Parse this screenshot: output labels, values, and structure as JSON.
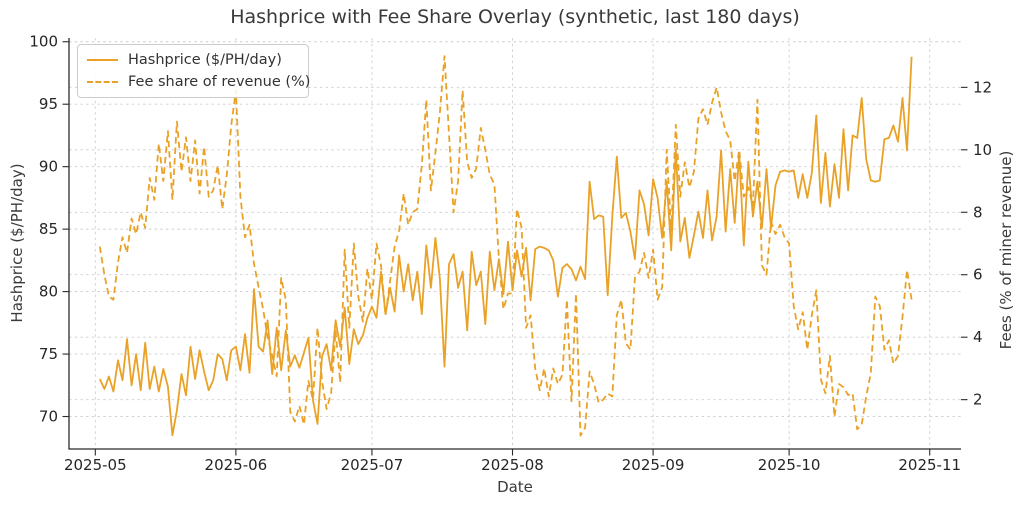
{
  "title": "Hashprice with Fee Share Overlay (synthetic, last 180 days)",
  "legend": {
    "items": [
      {
        "label": "Hashprice ($/PH/day)",
        "style": "solid"
      },
      {
        "label": "Fee share of revenue (%)",
        "style": "dashed"
      }
    ]
  },
  "colors": {
    "line": "#E9A227",
    "grid": "#cdcdcd",
    "spine": "#2b2b2b",
    "tick_text": "#262626",
    "text": "#3a3a3a"
  },
  "chart_data": {
    "type": "line",
    "title": "Hashprice with Fee Share Overlay (synthetic, last 180 days)",
    "xlabel": "Date",
    "ylabel_left": "Hashprice ($/PH/day)",
    "ylabel_right": "Fees (% of miner revenue)",
    "x_start_date": "2025-05-02",
    "x_cadence": "daily",
    "x_ticks": [
      {
        "label": "2025-05",
        "index": -1
      },
      {
        "label": "2025-06",
        "index": 30
      },
      {
        "label": "2025-07",
        "index": 60
      },
      {
        "label": "2025-08",
        "index": 91
      },
      {
        "label": "2025-09",
        "index": 122
      },
      {
        "label": "2025-10",
        "index": 152
      },
      {
        "label": "2025-11",
        "index": 183
      }
    ],
    "xlim_index": [
      -6.8,
      189.9
    ],
    "ylim_left": [
      67.4,
      100.3
    ],
    "yticks_left": [
      70,
      75,
      80,
      85,
      90,
      95,
      100
    ],
    "ylim_right": [
      0.42,
      13.58
    ],
    "yticks_right": [
      2,
      4,
      6,
      8,
      10,
      12
    ],
    "grid": true,
    "legend_position": "upper-left",
    "series": [
      {
        "name": "Hashprice ($/PH/day)",
        "axis": "left",
        "style": "solid",
        "values": [
          73.0,
          72.2,
          73.2,
          72.0,
          74.5,
          72.9,
          76.2,
          72.5,
          75.0,
          72.1,
          75.9,
          72.2,
          74.0,
          72.0,
          73.8,
          72.4,
          68.5,
          70.5,
          73.4,
          71.7,
          75.6,
          73.0,
          75.3,
          73.6,
          72.1,
          72.9,
          75.0,
          74.6,
          72.9,
          75.3,
          75.6,
          73.7,
          76.6,
          73.5,
          80.2,
          75.6,
          75.2,
          77.7,
          73.4,
          77.1,
          73.7,
          76.9,
          74.0,
          74.9,
          73.9,
          75.1,
          76.3,
          71.3,
          69.4,
          74.8,
          75.8,
          73.7,
          77.7,
          75.6,
          78.7,
          74.2,
          77.0,
          75.8,
          76.5,
          77.9,
          78.8,
          77.9,
          81.6,
          78.2,
          80.3,
          78.4,
          82.9,
          80.0,
          82.2,
          79.3,
          81.6,
          78.2,
          83.7,
          80.3,
          84.3,
          81.0,
          74.0,
          82.2,
          83.0,
          80.3,
          81.6,
          76.9,
          83.2,
          80.5,
          81.6,
          77.4,
          83.2,
          80.1,
          82.6,
          79.8,
          84.0,
          80.1,
          83.3,
          81.2,
          83.5,
          79.3,
          83.4,
          83.6,
          83.5,
          83.3,
          82.5,
          79.6,
          81.9,
          82.2,
          81.8,
          80.9,
          82.0,
          81.0,
          88.8,
          85.8,
          86.1,
          86.0,
          79.7,
          86.0,
          90.8,
          85.9,
          86.3,
          84.8,
          82.6,
          88.1,
          87.0,
          84.5,
          89.0,
          87.5,
          84.3,
          88.8,
          83.3,
          91.4,
          84.0,
          85.9,
          82.7,
          84.5,
          86.4,
          84.3,
          88.1,
          84.1,
          86.0,
          91.3,
          84.8,
          89.8,
          85.5,
          91.1,
          83.7,
          90.4,
          86.0,
          88.8,
          85.1,
          89.8,
          85.1,
          88.5,
          89.6,
          89.7,
          89.6,
          89.7,
          87.5,
          89.4,
          87.5,
          89.5,
          94.1,
          87.1,
          91.1,
          86.8,
          90.2,
          87.5,
          93.0,
          88.1,
          92.5,
          92.3,
          95.5,
          90.6,
          88.9,
          88.8,
          88.9,
          92.2,
          92.3,
          93.3,
          92.0,
          95.5,
          91.3,
          98.8
        ]
      },
      {
        "name": "Fee share of revenue (%)",
        "axis": "right",
        "style": "dashed",
        "values": [
          6.9,
          6.0,
          5.3,
          5.2,
          6.4,
          7.2,
          6.7,
          7.8,
          7.3,
          8.0,
          7.5,
          9.1,
          8.4,
          10.2,
          9.0,
          10.6,
          8.4,
          10.9,
          9.3,
          10.4,
          9.0,
          10.3,
          8.6,
          10.1,
          8.5,
          8.7,
          9.5,
          8.1,
          9.2,
          10.8,
          11.9,
          8.5,
          7.2,
          7.6,
          6.35,
          5.6,
          4.9,
          4.0,
          3.4,
          2.75,
          5.9,
          5.2,
          1.6,
          1.3,
          1.8,
          1.2,
          2.6,
          2.0,
          4.3,
          2.6,
          1.7,
          2.2,
          4.2,
          2.55,
          6.8,
          4.3,
          7.0,
          5.3,
          4.5,
          6.2,
          5.2,
          7.0,
          6.3,
          4.7,
          5.8,
          6.9,
          7.4,
          8.6,
          7.6,
          8.0,
          8.1,
          9.5,
          11.6,
          8.7,
          9.9,
          11.2,
          13.0,
          10.5,
          8.0,
          9.0,
          11.9,
          9.6,
          9.1,
          9.4,
          10.7,
          10.0,
          9.2,
          8.9,
          6.5,
          4.9,
          5.4,
          5.4,
          8.1,
          7.5,
          4.3,
          4.7,
          3.0,
          2.3,
          3.0,
          2.1,
          3.0,
          2.5,
          2.8,
          5.2,
          1.95,
          5.4,
          0.85,
          1.1,
          2.9,
          2.5,
          1.9,
          2.0,
          2.2,
          2.1,
          4.7,
          5.2,
          3.8,
          3.6,
          5.9,
          6.1,
          6.7,
          5.9,
          6.8,
          5.2,
          5.6,
          10.0,
          7.4,
          10.8,
          8.5,
          9.6,
          8.8,
          9.3,
          11.0,
          11.3,
          10.8,
          11.5,
          12.0,
          11.2,
          10.6,
          10.3,
          9.0,
          10.0,
          8.5,
          8.8,
          8.2,
          11.6,
          6.3,
          6.0,
          7.7,
          7.3,
          7.6,
          7.2,
          7.0,
          5.0,
          4.25,
          4.8,
          3.6,
          4.7,
          5.5,
          2.65,
          2.2,
          3.4,
          1.45,
          2.5,
          2.4,
          2.15,
          2.2,
          1.05,
          1.2,
          2.1,
          2.85,
          5.3,
          5.0,
          3.6,
          3.9,
          3.15,
          3.4,
          4.65,
          6.15,
          5.2
        ]
      }
    ]
  }
}
